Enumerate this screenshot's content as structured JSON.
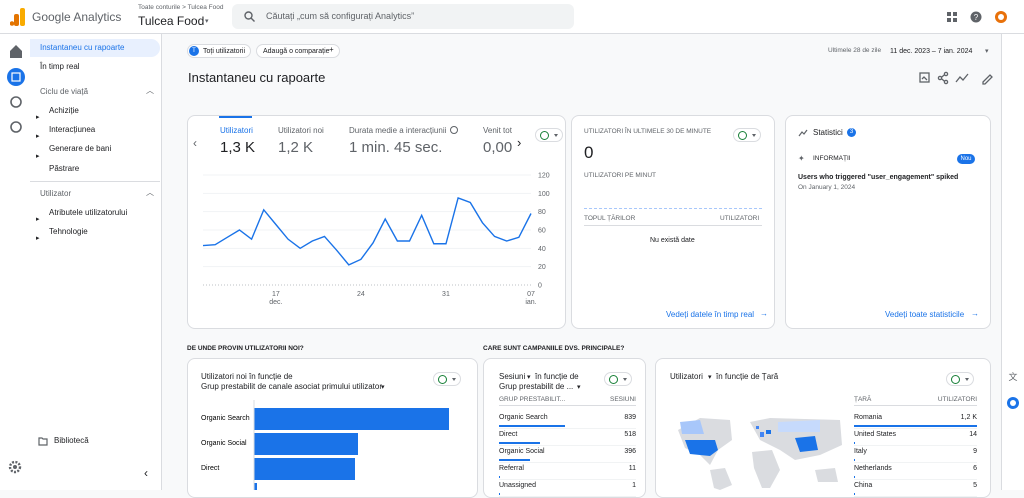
{
  "header": {
    "product": "Google Analytics",
    "breadcrumb": "Toate conturile > Tulcea Food",
    "property": "Tulcea Food",
    "search": "Căutați „cum să configurați Analytics”"
  },
  "sidebar": {
    "items": [
      "Instantaneu cu rapoarte",
      "În timp real"
    ],
    "lifecycle": {
      "title": "Ciclu de viață",
      "items": [
        "Achiziție",
        "Interacțiunea",
        "Generare de bani",
        "Păstrare"
      ]
    },
    "user": {
      "title": "Utilizator",
      "items": [
        "Atributele utilizatorului",
        "Tehnologie"
      ]
    },
    "library": "Bibliotecă"
  },
  "toolbar": {
    "segment_initial": "T",
    "segment": "Toți utilizatorii",
    "compare": "Adaugă o comparație",
    "range_label": "Ultimele 28 de zile",
    "range": "11 dec. 2023 – 7 ian. 2024"
  },
  "page_title": "Instantaneu cu rapoarte",
  "overview": {
    "metrics": [
      {
        "name": "Utilizatori",
        "value": "1,3 K"
      },
      {
        "name": "Utilizatori noi",
        "value": "1,2 K"
      },
      {
        "name": "Durata medie a interacțiunii",
        "value": "1 min. 45 sec."
      },
      {
        "name": "Venit tot",
        "value": "0,00"
      }
    ],
    "chart": {
      "type": "line",
      "categories": [
        null,
        null,
        null,
        null,
        null,
        null,
        "17 dec.",
        null,
        null,
        null,
        null,
        null,
        null,
        "24",
        null,
        null,
        null,
        null,
        null,
        null,
        "31",
        null,
        null,
        null,
        null,
        null,
        null,
        "07 ian."
      ],
      "values": [
        43,
        44,
        52,
        60,
        50,
        82,
        66,
        50,
        40,
        48,
        53,
        38,
        22,
        28,
        46,
        72,
        48,
        48,
        76,
        45,
        45,
        95,
        90,
        68,
        53,
        48,
        52,
        78
      ],
      "ylim": [
        0,
        120
      ],
      "yticks": [
        0,
        20,
        40,
        60,
        80,
        100,
        120
      ],
      "color": "#1a73e8",
      "grid": true
    }
  },
  "realtime": {
    "title": "UTILIZATORI ÎN ULTIMELE 30 DE MINUTE",
    "value": 0,
    "per_minute": "UTILIZATORI PE MINUT",
    "columns": [
      "TOPUL ȚĂRILOR",
      "UTILIZATORI"
    ],
    "empty": "Nu există date",
    "link": "Vedeți datele în timp real"
  },
  "insights": {
    "title": "Statistici",
    "count": 3,
    "label": "INFORMAȚII",
    "badge": "Nou",
    "text": "Users who triggered \"user_engagement\" spiked",
    "date": "On January 1, 2024",
    "link": "Vedeți toate statisticile"
  },
  "sections": [
    "DE UNDE PROVIN UTILIZATORII NOI?",
    "CARE SUNT CAMPANIILE DVS. PRINCIPALE?"
  ],
  "new_users": {
    "title": "Utilizatori noi în funcție de",
    "dimension": "Grup prestabilit de canale asociat primului utilizator",
    "chart": {
      "type": "bar",
      "categories": [
        "Organic Search",
        "Organic Social",
        "Direct",
        null
      ],
      "values": [
        780,
        416,
        404,
        12
      ],
      "xlim": [
        0,
        800
      ],
      "color": "#1a73e8"
    }
  },
  "campaigns": {
    "metric": "Sesiuni",
    "by": "în funcție de",
    "dimension": "Grup prestabilit de ...",
    "columns": [
      "GRUP PRESTABILIT...",
      "SESIUNI"
    ],
    "rows": [
      [
        "Organic Search",
        839
      ],
      [
        "Direct",
        518
      ],
      [
        "Organic Social",
        396
      ],
      [
        "Referral",
        11
      ],
      [
        "Unassigned",
        1
      ]
    ]
  },
  "countries": {
    "metric": "Utilizatori",
    "by": "în funcție de Țară",
    "columns": [
      "ȚARĂ",
      "UTILIZATORI"
    ],
    "rows": [
      [
        "Romania",
        {
          "value": 1200,
          "label": "1,2 K"
        }
      ],
      [
        "United States",
        14
      ],
      [
        "Italy",
        9
      ],
      [
        "Netherlands",
        6
      ],
      [
        "China",
        5
      ]
    ]
  }
}
